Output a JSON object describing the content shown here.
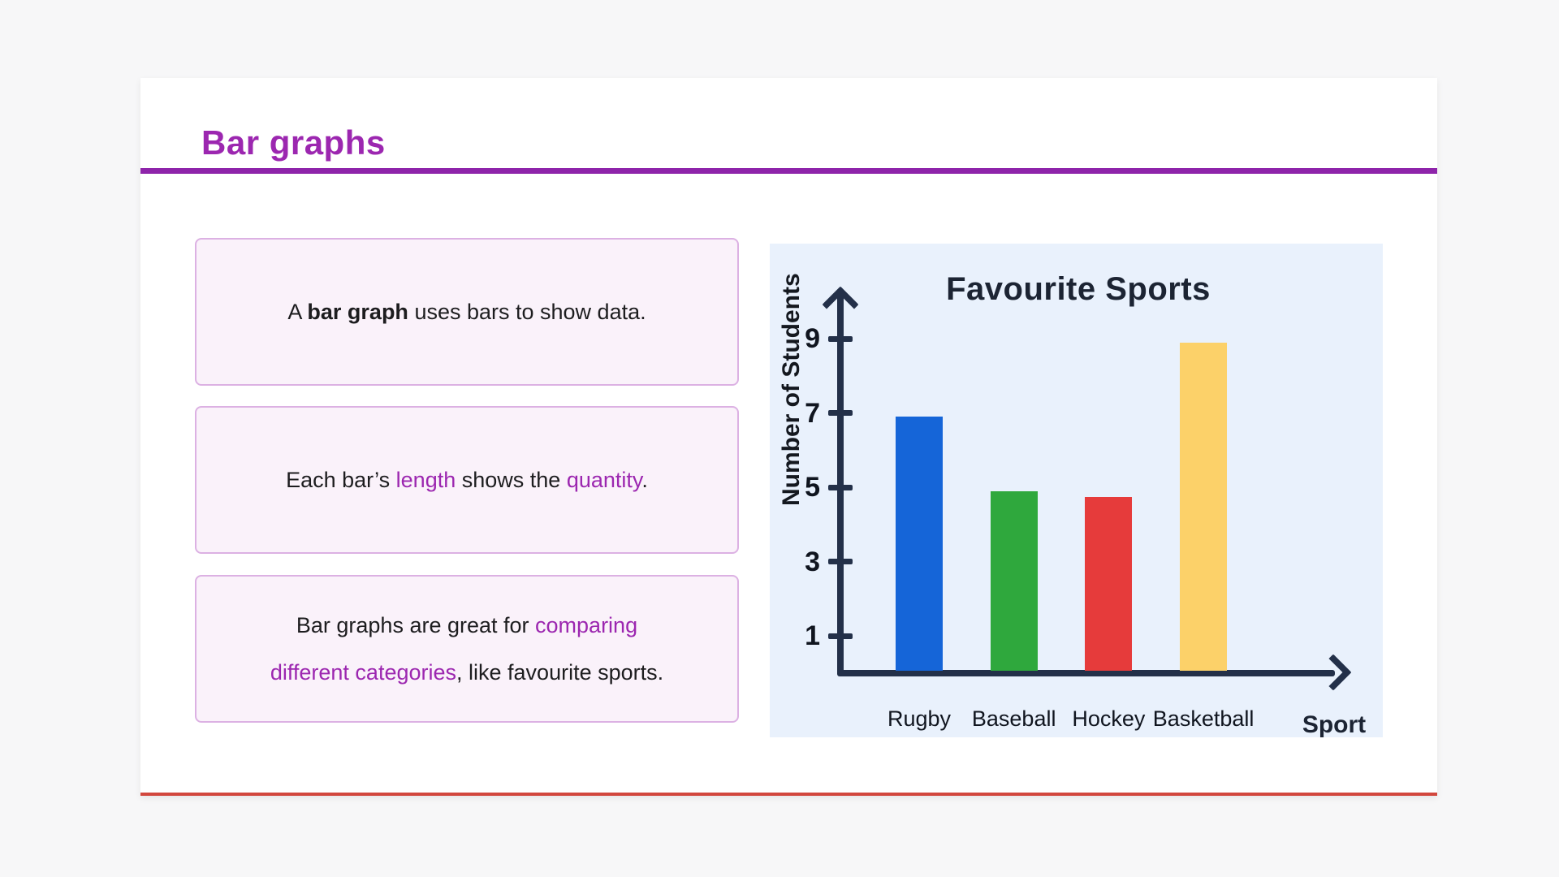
{
  "header": {
    "title": "Bar graphs"
  },
  "colors": {
    "accent_purple": "#9c27b0",
    "divider_purple": "#8e24aa",
    "card_bottom_line": "#d2473d",
    "info_box_background": "#faf2fa",
    "info_box_border": "#dcb1e3",
    "chart_background": "#e9f1fc",
    "axis_navy": "#233049"
  },
  "info_boxes": [
    {
      "segments": [
        {
          "text": "A ",
          "style": "normal"
        },
        {
          "text": "bar graph",
          "style": "bold"
        },
        {
          "text": " uses bars to show data.",
          "style": "normal"
        }
      ]
    },
    {
      "segments": [
        {
          "text": "Each bar’s ",
          "style": "normal"
        },
        {
          "text": "length",
          "style": "purple"
        },
        {
          "text": " shows the ",
          "style": "normal"
        },
        {
          "text": "quantity",
          "style": "purple"
        },
        {
          "text": ".",
          "style": "normal"
        }
      ]
    },
    {
      "segments": [
        {
          "text": "Bar graphs are great for ",
          "style": "normal"
        },
        {
          "text": "comparing",
          "style": "purple"
        },
        {
          "break": true
        },
        {
          "text": "different categories",
          "style": "purple"
        },
        {
          "text": ", like favourite sports.",
          "style": "normal"
        }
      ]
    }
  ],
  "chart_data": {
    "type": "bar",
    "title": "Favourite Sports",
    "xlabel": "Sport",
    "ylabel": "Number of Students",
    "categories": [
      "Rugby",
      "Baseball",
      "Hockey",
      "Basketball"
    ],
    "values": [
      6.9,
      4.9,
      4.75,
      8.9
    ],
    "bar_colors": [
      "#1565d8",
      "#2fa83d",
      "#e63b3b",
      "#fcd169"
    ],
    "yticks": [
      1,
      3,
      5,
      7,
      9
    ],
    "ylim": [
      0,
      10
    ],
    "grid": false,
    "legend": "none",
    "background": "#e9f1fc"
  }
}
